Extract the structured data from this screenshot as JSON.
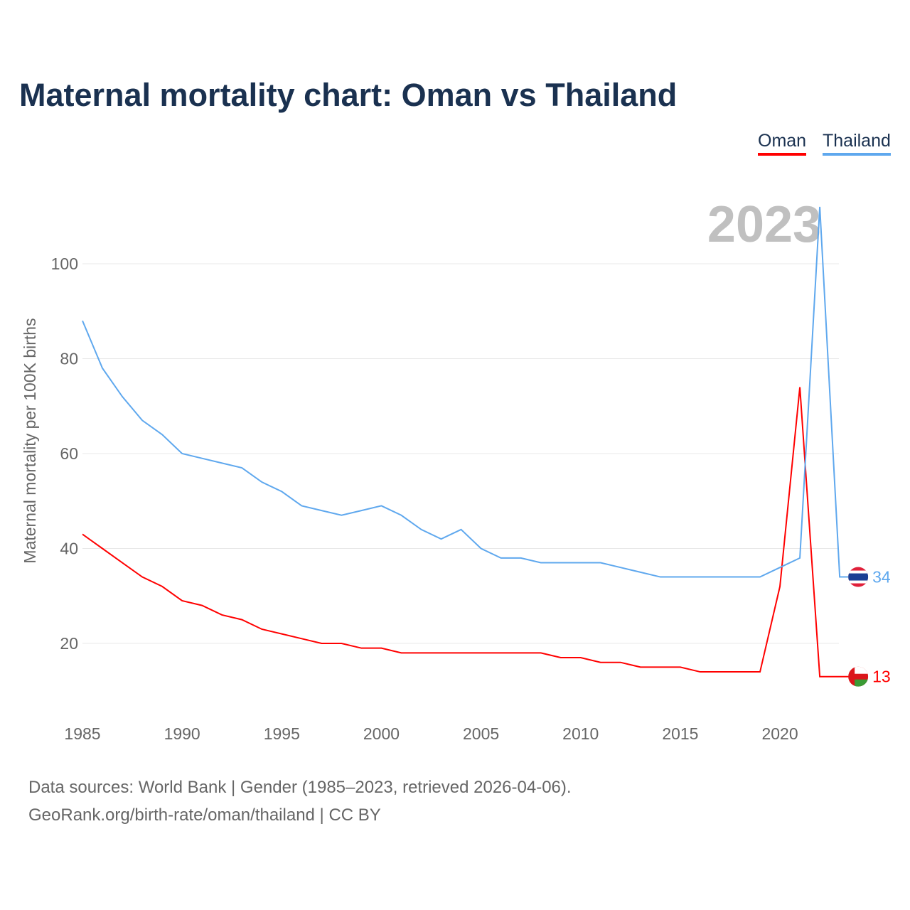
{
  "title": "Maternal mortality chart: Oman vs Thailand",
  "year_watermark": "2023",
  "source_line1": "Data sources: World Bank | Gender (1985–2023, retrieved 2026-04-06).",
  "source_line2": "GeoRank.org/birth-rate/oman/thailand | CC BY",
  "chart_data": {
    "type": "line",
    "title": "Maternal mortality chart: Oman vs Thailand",
    "xlabel": "",
    "ylabel": "Maternal mortality per 100K births",
    "xlim": [
      1985,
      2023
    ],
    "ylim": [
      0,
      112
    ],
    "xticks": [
      1985,
      1990,
      1995,
      2000,
      2005,
      2010,
      2015,
      2020
    ],
    "yticks": [
      20,
      40,
      60,
      80,
      100
    ],
    "grid": true,
    "legend_position": "top-right",
    "x": [
      1985,
      1986,
      1987,
      1988,
      1989,
      1990,
      1991,
      1992,
      1993,
      1994,
      1995,
      1996,
      1997,
      1998,
      1999,
      2000,
      2001,
      2002,
      2003,
      2004,
      2005,
      2006,
      2007,
      2008,
      2009,
      2010,
      2011,
      2012,
      2013,
      2014,
      2015,
      2016,
      2017,
      2018,
      2019,
      2020,
      2021,
      2022,
      2023
    ],
    "series": [
      {
        "name": "Oman",
        "color": "#ff0000",
        "end_label": "13",
        "values": [
          43,
          40,
          37,
          34,
          32,
          29,
          28,
          26,
          25,
          23,
          22,
          21,
          20,
          20,
          19,
          19,
          18,
          18,
          18,
          18,
          18,
          18,
          18,
          18,
          17,
          17,
          16,
          16,
          15,
          15,
          15,
          14,
          14,
          14,
          14,
          32,
          74,
          13,
          13
        ]
      },
      {
        "name": "Thailand",
        "color": "#5fa8ee",
        "end_label": "34",
        "values": [
          88,
          78,
          72,
          67,
          64,
          60,
          59,
          58,
          57,
          54,
          52,
          49,
          48,
          47,
          48,
          49,
          47,
          44,
          42,
          44,
          40,
          38,
          38,
          37,
          37,
          37,
          37,
          36,
          35,
          34,
          34,
          34,
          34,
          34,
          34,
          36,
          38,
          112,
          34
        ]
      }
    ]
  }
}
